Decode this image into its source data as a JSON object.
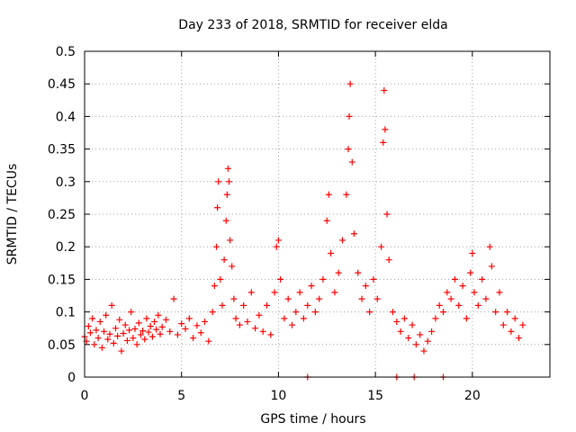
{
  "chart_data": {
    "type": "scatter",
    "title": "Day 233 of 2018, SRMTID for receiver elda",
    "xlabel": "GPS time / hours",
    "ylabel": "SRMTID / TECUs",
    "xlim": [
      0,
      24
    ],
    "ylim": [
      0,
      0.5
    ],
    "x_ticks": [
      0,
      5,
      10,
      15,
      20
    ],
    "x_tick_labels": [
      "0",
      "5",
      "10",
      "15",
      "20"
    ],
    "y_ticks": [
      0,
      0.05,
      0.1,
      0.15,
      0.2,
      0.25,
      0.3,
      0.35,
      0.4,
      0.45,
      0.5
    ],
    "y_tick_labels": [
      "0",
      "0.05",
      "0.1",
      "0.15",
      "0.2",
      "0.25",
      "0.3",
      "0.35",
      "0.4",
      "0.45",
      "0.5"
    ],
    "grid": true,
    "marker": "plus",
    "color": "#ff0000",
    "series": [
      {
        "name": "SRMTID",
        "points": [
          [
            0.0,
            0.062
          ],
          [
            0.1,
            0.055
          ],
          [
            0.2,
            0.078
          ],
          [
            0.3,
            0.068
          ],
          [
            0.4,
            0.09
          ],
          [
            0.5,
            0.05
          ],
          [
            0.6,
            0.072
          ],
          [
            0.7,
            0.06
          ],
          [
            0.8,
            0.085
          ],
          [
            0.9,
            0.045
          ],
          [
            1.0,
            0.07
          ],
          [
            1.1,
            0.095
          ],
          [
            1.2,
            0.058
          ],
          [
            1.3,
            0.066
          ],
          [
            1.4,
            0.11
          ],
          [
            1.5,
            0.052
          ],
          [
            1.6,
            0.075
          ],
          [
            1.7,
            0.063
          ],
          [
            1.8,
            0.088
          ],
          [
            1.9,
            0.04
          ],
          [
            2.0,
            0.067
          ],
          [
            2.1,
            0.08
          ],
          [
            2.2,
            0.056
          ],
          [
            2.3,
            0.072
          ],
          [
            2.4,
            0.1
          ],
          [
            2.5,
            0.06
          ],
          [
            2.6,
            0.074
          ],
          [
            2.7,
            0.05
          ],
          [
            2.8,
            0.083
          ],
          [
            2.9,
            0.065
          ],
          [
            3.0,
            0.071
          ],
          [
            3.1,
            0.058
          ],
          [
            3.2,
            0.09
          ],
          [
            3.3,
            0.069
          ],
          [
            3.4,
            0.078
          ],
          [
            3.5,
            0.062
          ],
          [
            3.6,
            0.085
          ],
          [
            3.7,
            0.073
          ],
          [
            3.8,
            0.095
          ],
          [
            3.9,
            0.066
          ],
          [
            4.0,
            0.077
          ],
          [
            4.2,
            0.088
          ],
          [
            4.4,
            0.07
          ],
          [
            4.6,
            0.12
          ],
          [
            4.8,
            0.065
          ],
          [
            5.0,
            0.082
          ],
          [
            5.2,
            0.074
          ],
          [
            5.4,
            0.09
          ],
          [
            5.6,
            0.06
          ],
          [
            5.8,
            0.079
          ],
          [
            6.0,
            0.068
          ],
          [
            6.2,
            0.085
          ],
          [
            6.4,
            0.055
          ],
          [
            6.6,
            0.1
          ],
          [
            6.7,
            0.14
          ],
          [
            6.8,
            0.2
          ],
          [
            6.85,
            0.26
          ],
          [
            6.9,
            0.3
          ],
          [
            7.0,
            0.15
          ],
          [
            7.1,
            0.11
          ],
          [
            7.2,
            0.18
          ],
          [
            7.3,
            0.24
          ],
          [
            7.35,
            0.28
          ],
          [
            7.4,
            0.32
          ],
          [
            7.45,
            0.3
          ],
          [
            7.5,
            0.21
          ],
          [
            7.6,
            0.17
          ],
          [
            7.7,
            0.12
          ],
          [
            7.8,
            0.09
          ],
          [
            8.0,
            0.08
          ],
          [
            8.2,
            0.11
          ],
          [
            8.4,
            0.085
          ],
          [
            8.6,
            0.13
          ],
          [
            8.8,
            0.075
          ],
          [
            9.0,
            0.095
          ],
          [
            9.2,
            0.07
          ],
          [
            9.4,
            0.11
          ],
          [
            9.6,
            0.065
          ],
          [
            9.8,
            0.13
          ],
          [
            9.9,
            0.2
          ],
          [
            10.0,
            0.21
          ],
          [
            10.1,
            0.15
          ],
          [
            10.3,
            0.09
          ],
          [
            10.5,
            0.12
          ],
          [
            10.7,
            0.08
          ],
          [
            10.9,
            0.1
          ],
          [
            11.1,
            0.13
          ],
          [
            11.3,
            0.09
          ],
          [
            11.5,
            0.11
          ],
          [
            11.7,
            0.14
          ],
          [
            11.9,
            0.1
          ],
          [
            12.1,
            0.12
          ],
          [
            12.3,
            0.15
          ],
          [
            12.5,
            0.24
          ],
          [
            12.6,
            0.28
          ],
          [
            12.7,
            0.19
          ],
          [
            12.9,
            0.13
          ],
          [
            13.1,
            0.16
          ],
          [
            13.3,
            0.21
          ],
          [
            13.5,
            0.28
          ],
          [
            13.6,
            0.35
          ],
          [
            13.65,
            0.4
          ],
          [
            13.7,
            0.45
          ],
          [
            13.8,
            0.33
          ],
          [
            13.9,
            0.22
          ],
          [
            14.1,
            0.16
          ],
          [
            14.3,
            0.12
          ],
          [
            14.5,
            0.14
          ],
          [
            14.7,
            0.1
          ],
          [
            14.9,
            0.15
          ],
          [
            15.1,
            0.12
          ],
          [
            15.3,
            0.2
          ],
          [
            15.4,
            0.36
          ],
          [
            15.45,
            0.44
          ],
          [
            15.5,
            0.38
          ],
          [
            15.6,
            0.25
          ],
          [
            15.7,
            0.18
          ],
          [
            15.9,
            0.1
          ],
          [
            16.1,
            0.085
          ],
          [
            16.3,
            0.07
          ],
          [
            16.5,
            0.09
          ],
          [
            16.7,
            0.06
          ],
          [
            16.9,
            0.08
          ],
          [
            17.1,
            0.05
          ],
          [
            17.3,
            0.065
          ],
          [
            17.5,
            0.04
          ],
          [
            17.7,
            0.055
          ],
          [
            17.9,
            0.07
          ],
          [
            18.1,
            0.09
          ],
          [
            18.3,
            0.11
          ],
          [
            18.5,
            0.1
          ],
          [
            18.7,
            0.13
          ],
          [
            18.9,
            0.12
          ],
          [
            19.1,
            0.15
          ],
          [
            19.3,
            0.11
          ],
          [
            19.5,
            0.14
          ],
          [
            19.7,
            0.09
          ],
          [
            19.9,
            0.16
          ],
          [
            20.0,
            0.19
          ],
          [
            20.1,
            0.13
          ],
          [
            20.3,
            0.11
          ],
          [
            20.5,
            0.15
          ],
          [
            20.7,
            0.12
          ],
          [
            20.9,
            0.2
          ],
          [
            21.0,
            0.17
          ],
          [
            21.2,
            0.1
          ],
          [
            21.4,
            0.13
          ],
          [
            21.6,
            0.08
          ],
          [
            21.8,
            0.1
          ],
          [
            22.0,
            0.07
          ],
          [
            22.2,
            0.09
          ],
          [
            22.4,
            0.06
          ],
          [
            22.6,
            0.08
          ]
        ]
      },
      {
        "name": "zero markers",
        "points": [
          [
            11.5,
            0
          ],
          [
            16.1,
            0
          ],
          [
            17.0,
            0
          ],
          [
            18.5,
            0
          ]
        ]
      }
    ]
  }
}
